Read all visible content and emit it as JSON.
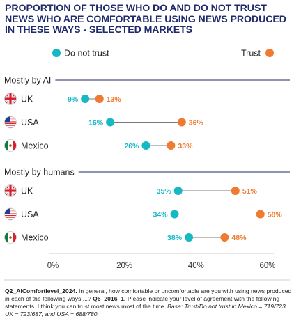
{
  "chart_data": {
    "type": "dot-range",
    "title": "PROPORTION OF THOSE WHO DO AND DO NOT TRUST NEWS WHO ARE COMFORTABLE USING NEWS PRODUCED IN THESE WAYS - SELECTED MARKETS",
    "legend": [
      {
        "key": "do_not_trust",
        "label": "Do not trust",
        "color": "#16b8c4",
        "placement": "top-left"
      },
      {
        "key": "trust",
        "label": "Trust",
        "color": "#f07a2f",
        "placement": "top-right"
      }
    ],
    "xlim": [
      0,
      60
    ],
    "xticks": [
      0,
      20,
      40,
      60
    ],
    "tick_suffix": "%",
    "groups": [
      {
        "label": "Mostly by AI",
        "rows": [
          {
            "market": "UK",
            "flag": "uk-flag",
            "do_not_trust": 9,
            "trust": 13
          },
          {
            "market": "USA",
            "flag": "usa-flag",
            "do_not_trust": 16,
            "trust": 36
          },
          {
            "market": "Mexico",
            "flag": "mexico-flag",
            "do_not_trust": 26,
            "trust": 33
          }
        ]
      },
      {
        "label": "Mostly by humans",
        "rows": [
          {
            "market": "UK",
            "flag": "uk-flag",
            "do_not_trust": 35,
            "trust": 51
          },
          {
            "market": "USA",
            "flag": "usa-flag",
            "do_not_trust": 34,
            "trust": 58
          },
          {
            "market": "Mexico",
            "flag": "mexico-flag",
            "do_not_trust": 38,
            "trust": 48
          }
        ]
      }
    ]
  },
  "notes": {
    "q_code": "Q2_AIComfortlevel_2024.",
    "q_text": " In general, how comfortable or uncomfortable are you with using news produced in each of the following ways ...? ",
    "q6_code": "Q6_2016_1.",
    "q6_text": " Please indicate your level of agreement with the following statements. I think you can trust most news most of the time. ",
    "base_text": "Base: Trust/Do not trust in Mexico = 719/723, UK = 723/687, and USA = 688/780."
  }
}
